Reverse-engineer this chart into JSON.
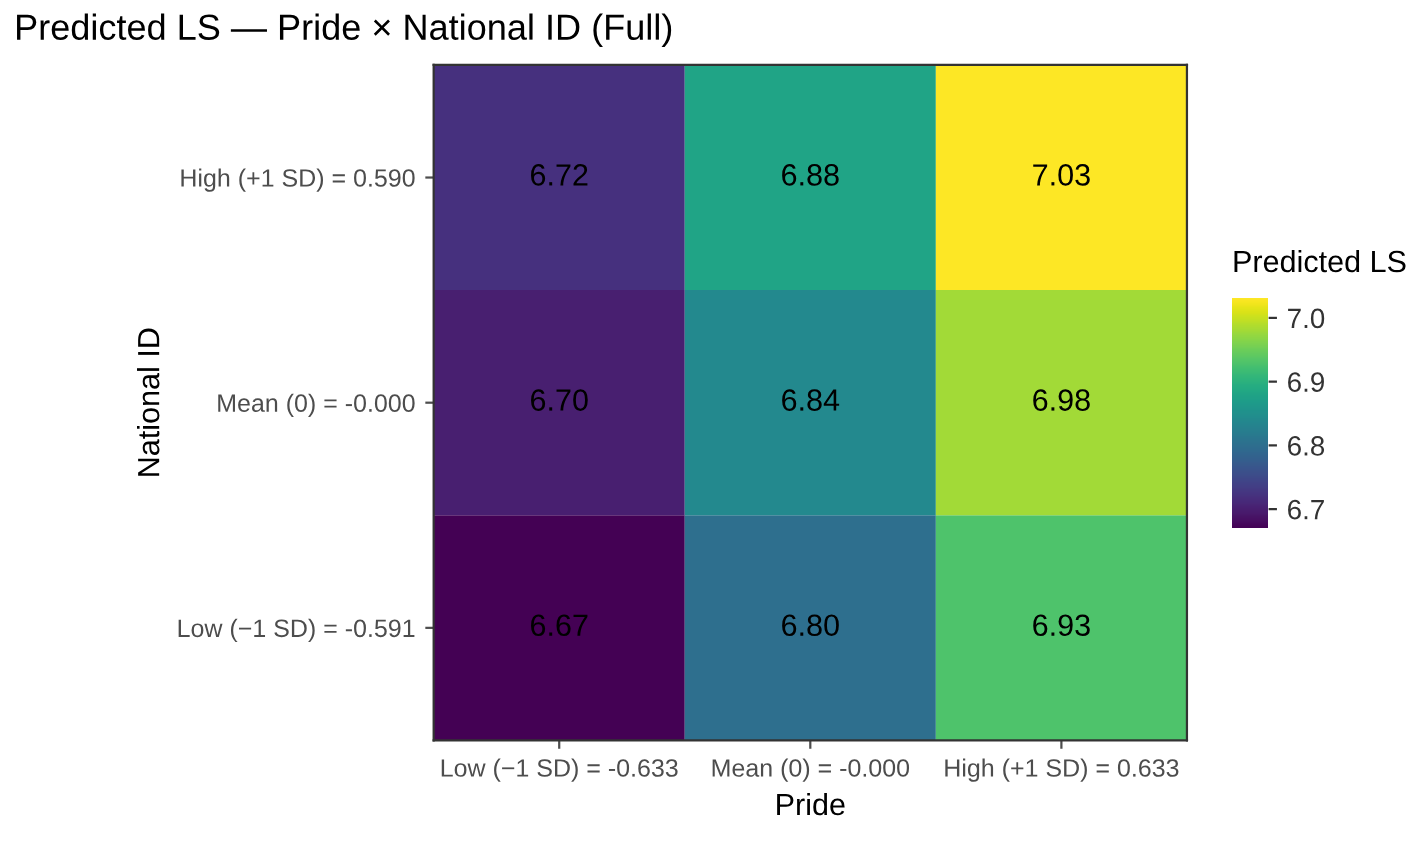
{
  "chart_data": {
    "type": "heatmap",
    "title": "Predicted LS — Pride × National ID (Full)",
    "xlabel": "Pride",
    "ylabel": "National ID",
    "clabel": "Predicted LS",
    "categories": [
      "Low (−1 SD) = -0.633",
      "Mean (0) = -0.000",
      "High (+1 SD) = 0.633"
    ],
    "y_categories": [
      "High (+1 SD) = 0.590",
      "Mean (0) = -0.000",
      "Low (−1 SD) = -0.591"
    ],
    "cells": [
      [
        6.72,
        6.88,
        7.03
      ],
      [
        6.7,
        6.84,
        6.98
      ],
      [
        6.67,
        6.8,
        6.93
      ]
    ],
    "cell_labels": [
      [
        "6.72",
        "6.88",
        "7.03"
      ],
      [
        "6.70",
        "6.84",
        "6.98"
      ],
      [
        "6.67",
        "6.80",
        "6.93"
      ]
    ],
    "clim": [
      6.67,
      7.03
    ],
    "cticks": [
      6.7,
      6.8,
      6.9,
      {
        "value": 7,
        "label": "7.0"
      }
    ]
  }
}
